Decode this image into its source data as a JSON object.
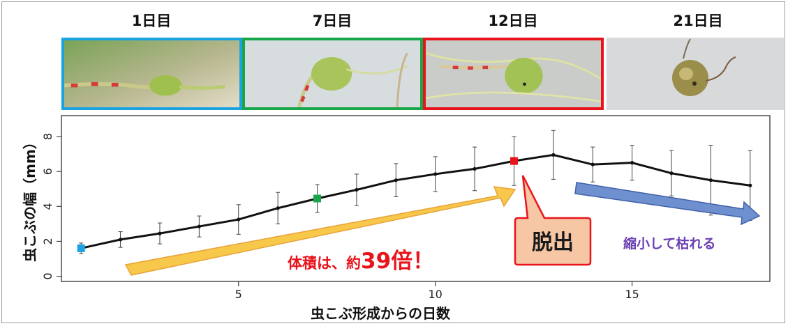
{
  "photos": [
    {
      "label": "1日目",
      "border_color": "#1aa3e0"
    },
    {
      "label": "7日目",
      "border_color": "#19a64a"
    },
    {
      "label": "12日目",
      "border_color": "#e8141c"
    },
    {
      "label": "21日目",
      "border_color": ""
    }
  ],
  "chart_data": {
    "type": "line",
    "xlabel": "虫こぶ形成からの日数",
    "ylabel": "虫こぶの幅（mm）",
    "xlim": [
      0.5,
      18.5
    ],
    "ylim": [
      -0.3,
      9.2
    ],
    "x_ticks": [
      5,
      10,
      15
    ],
    "y_ticks": [
      0,
      2,
      4,
      6,
      8
    ],
    "series": [
      {
        "x": [
          1,
          2,
          3,
          4,
          5,
          6,
          7,
          8,
          9,
          10,
          11,
          12,
          13,
          14,
          15,
          16,
          17,
          18
        ],
        "y": [
          1.6,
          2.1,
          2.45,
          2.85,
          3.25,
          3.9,
          4.45,
          4.95,
          5.5,
          5.85,
          6.15,
          6.6,
          6.95,
          6.4,
          6.5,
          5.9,
          5.5,
          5.2
        ],
        "err": [
          0.3,
          0.45,
          0.6,
          0.6,
          0.85,
          0.9,
          0.8,
          0.9,
          0.95,
          1.0,
          1.25,
          1.4,
          1.4,
          1.0,
          1.0,
          1.3,
          2.0,
          2.0
        ]
      }
    ],
    "highlights": [
      {
        "x": 1,
        "color": "#1aa3e0"
      },
      {
        "x": 7,
        "color": "#19a64a"
      },
      {
        "x": 12,
        "color": "#e8141c"
      }
    ],
    "annotations": {
      "growth_prefix": "体積は、約",
      "growth_number": "39倍！",
      "callout": "脱出",
      "shrink": "縮小して枯れる"
    },
    "colors": {
      "growth_arrow": "#f8c84a",
      "shrink_arrow": "#6f90cf",
      "callout_fill": "#f7c6a4",
      "callout_border": "#e8141c"
    }
  }
}
